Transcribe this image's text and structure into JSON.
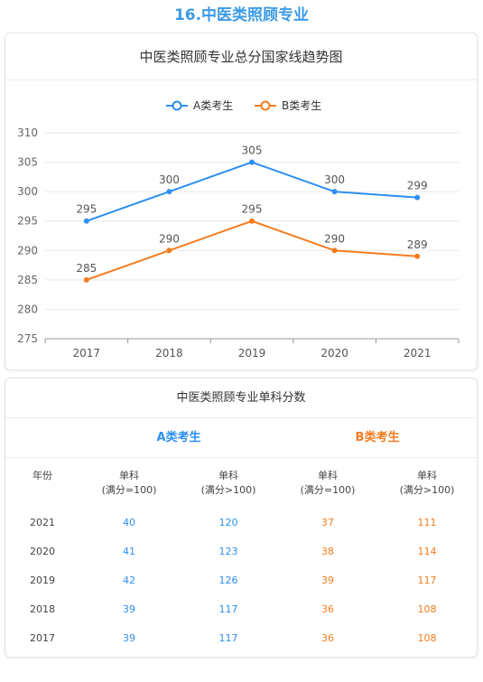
{
  "page_heading": "16.中医类照顾专业",
  "chart_data": {
    "type": "line",
    "title": "中医类照顾专业总分国家线趋势图",
    "categories": [
      "2017",
      "2018",
      "2019",
      "2020",
      "2021"
    ],
    "series": [
      {
        "name": "A类考生",
        "values": [
          295,
          300,
          305,
          300,
          299
        ],
        "color": "#2d8ff0"
      },
      {
        "name": "B类考生",
        "values": [
          285,
          290,
          295,
          290,
          289
        ],
        "color": "#f57c1f"
      }
    ],
    "ylim": [
      275,
      310
    ],
    "yticks": [
      275,
      280,
      285,
      290,
      295,
      300,
      305,
      310
    ],
    "grid": true,
    "legend": "top-center"
  },
  "table": {
    "title": "中医类照顾专业单科分数",
    "group_a": "A类考生",
    "group_b": "B类考生",
    "header": {
      "year": "年份",
      "col1_line1": "单科",
      "col1_line2": "(满分=100)",
      "col2_line1": "单科",
      "col2_line2": "(满分>100)",
      "col3_line1": "单科",
      "col3_line2": "(满分=100)",
      "col4_line1": "单科",
      "col4_line2": "(满分>100)"
    },
    "rows": [
      {
        "year": "2021",
        "a1": "40",
        "a2": "120",
        "b1": "37",
        "b2": "111"
      },
      {
        "year": "2020",
        "a1": "41",
        "a2": "123",
        "b1": "38",
        "b2": "114"
      },
      {
        "year": "2019",
        "a1": "42",
        "a2": "126",
        "b1": "39",
        "b2": "117"
      },
      {
        "year": "2018",
        "a1": "39",
        "a2": "117",
        "b1": "36",
        "b2": "108"
      },
      {
        "year": "2017",
        "a1": "39",
        "a2": "117",
        "b1": "36",
        "b2": "108"
      }
    ]
  }
}
